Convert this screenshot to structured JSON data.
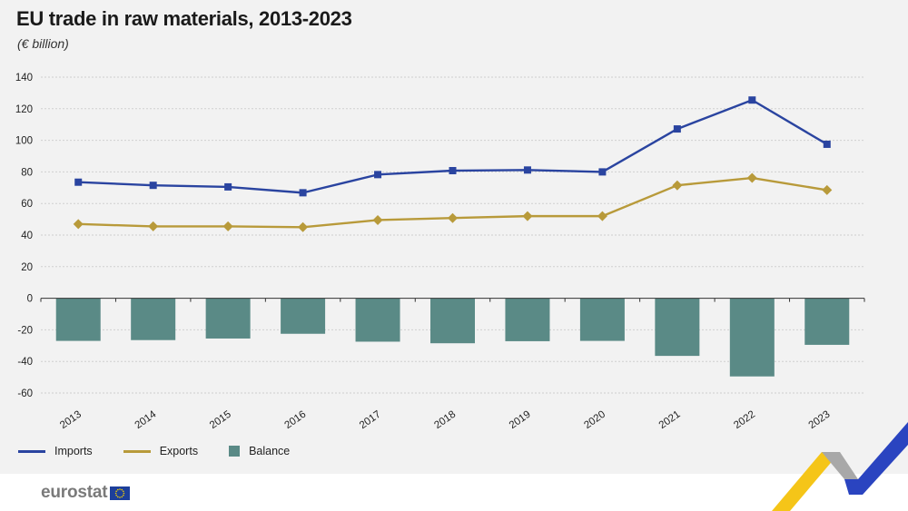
{
  "title": "EU trade in raw materials, 2013-2023",
  "subtitle": "(€ billion)",
  "legend": {
    "imports": "Imports",
    "exports": "Exports",
    "balance": "Balance"
  },
  "logo_text": "eurostat",
  "colors": {
    "imports": "#2a44a0",
    "exports": "#b89a3a",
    "balance": "#5a8a86",
    "grid": "#cfcfcf",
    "accent_yellow": "#f5c518",
    "accent_blue": "#2a44c0"
  },
  "chart_data": {
    "type": "line+bar",
    "title": "EU trade in raw materials, 2013-2023",
    "subtitle": "(€ billion)",
    "categories": [
      "2013",
      "2014",
      "2015",
      "2016",
      "2017",
      "2018",
      "2019",
      "2020",
      "2021",
      "2022",
      "2023"
    ],
    "series": [
      {
        "name": "Imports",
        "type": "line",
        "marker": "square",
        "values": [
          73.5,
          71.5,
          70.5,
          66.8,
          78.3,
          80.8,
          81.2,
          80.0,
          107.2,
          125.5,
          97.5
        ]
      },
      {
        "name": "Exports",
        "type": "line",
        "marker": "diamond",
        "values": [
          47.0,
          45.5,
          45.5,
          45.0,
          49.5,
          50.8,
          52.0,
          52.0,
          71.5,
          76.2,
          68.5
        ]
      },
      {
        "name": "Balance",
        "type": "bar",
        "values": [
          -27.0,
          -26.5,
          -25.5,
          -22.5,
          -27.5,
          -28.5,
          -27.2,
          -27.0,
          -36.5,
          -49.5,
          -29.5
        ]
      }
    ],
    "ylim": [
      -60,
      140
    ],
    "yticks": [
      140,
      120,
      100,
      80,
      60,
      40,
      20,
      0,
      -20,
      -40,
      -60
    ],
    "grid": true,
    "legend_position": "bottom-left"
  }
}
